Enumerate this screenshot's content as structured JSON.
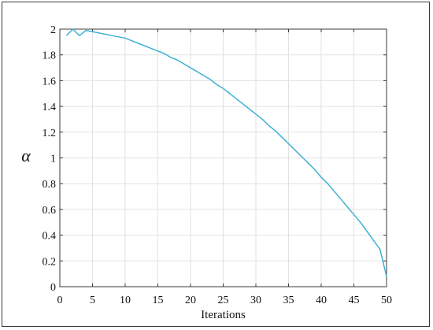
{
  "chart_data": {
    "type": "line",
    "title": "",
    "xlabel": "Iterations",
    "ylabel": "α",
    "xlim": [
      0,
      50
    ],
    "ylim": [
      0,
      2
    ],
    "grid": true,
    "xticks": [
      "0",
      "5",
      "10",
      "15",
      "20",
      "25",
      "30",
      "35",
      "40",
      "45",
      "50"
    ],
    "yticks": [
      "0",
      "0.2",
      "0.4",
      "0.6",
      "0.8",
      "1",
      "1.2",
      "1.4",
      "1.6",
      "1.8",
      "2"
    ],
    "line_color": "#3fb1d3",
    "series": [
      {
        "x": [
          1,
          2,
          3,
          4,
          5,
          6,
          7,
          8,
          9,
          10,
          11,
          12,
          13,
          14,
          15,
          16,
          17,
          18,
          19,
          20,
          21,
          22,
          23,
          24,
          25,
          26,
          27,
          28,
          29,
          30,
          31,
          32,
          33,
          34,
          35,
          36,
          37,
          38,
          39,
          40,
          41,
          42,
          43,
          44,
          45,
          46,
          47,
          48,
          49,
          50
        ],
        "y": [
          1.95,
          2.0,
          1.95,
          1.99,
          1.98,
          1.97,
          1.96,
          1.95,
          1.94,
          1.93,
          1.91,
          1.89,
          1.87,
          1.85,
          1.83,
          1.81,
          1.78,
          1.76,
          1.73,
          1.7,
          1.67,
          1.64,
          1.61,
          1.57,
          1.54,
          1.5,
          1.46,
          1.42,
          1.38,
          1.34,
          1.3,
          1.25,
          1.21,
          1.16,
          1.11,
          1.06,
          1.01,
          0.96,
          0.91,
          0.85,
          0.8,
          0.74,
          0.68,
          0.62,
          0.56,
          0.5,
          0.43,
          0.36,
          0.29,
          0.08
        ]
      }
    ]
  }
}
